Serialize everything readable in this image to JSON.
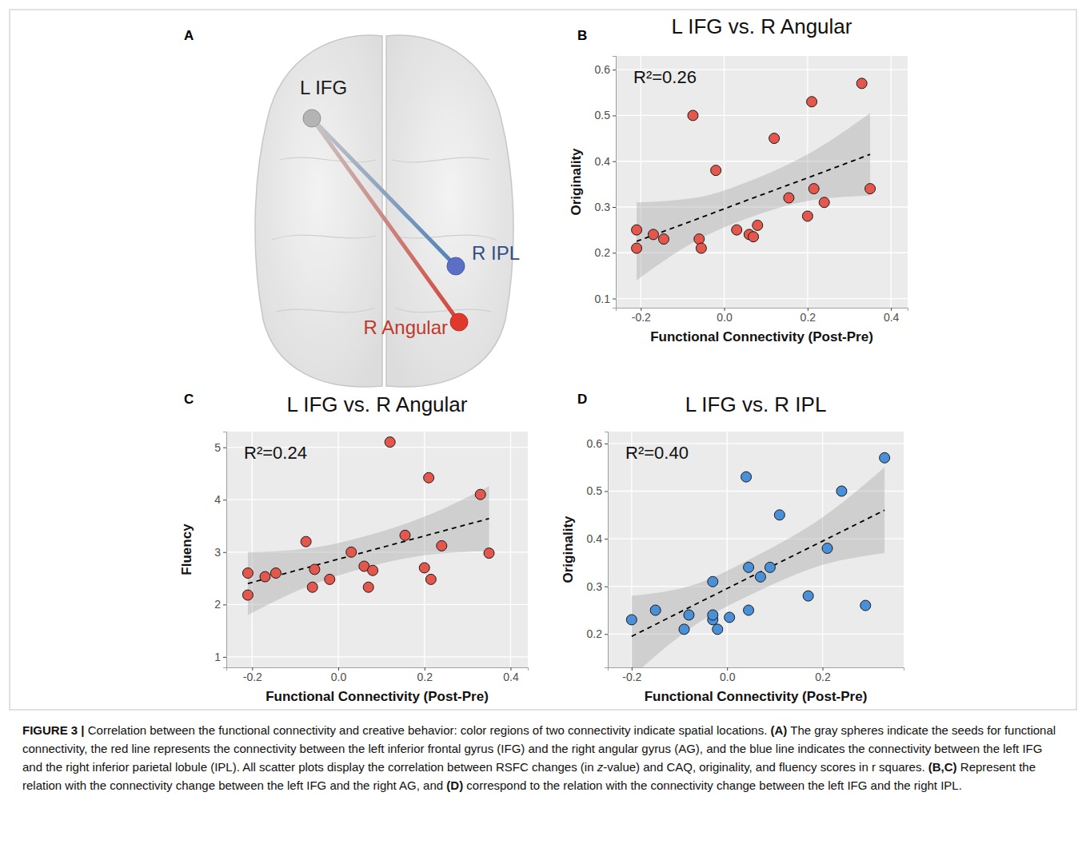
{
  "diagram": {
    "panel": "A",
    "nodes": [
      {
        "label": "L IFG",
        "color": "#b4b4b4"
      },
      {
        "label": "R IPL",
        "color": "#5b6fc7"
      },
      {
        "label": "R Angular",
        "color": "#e0392b"
      }
    ],
    "edges": [
      {
        "from": "L IFG",
        "to": "R IPL",
        "color": "#4f7fb8"
      },
      {
        "from": "L IFG",
        "to": "R Angular",
        "color": "#d2443a"
      }
    ]
  },
  "chart_data": [
    {
      "type": "scatter",
      "panel": "B",
      "title": "L IFG vs. R Angular",
      "annotation": "R²=0.26",
      "x_label": "Functional Connectivity (Post-Pre)",
      "y_label": "Originality",
      "xlim": [
        -0.26,
        0.44
      ],
      "ylim": [
        0.08,
        0.63
      ],
      "xticks": [
        -0.2,
        {
          "value": 0,
          "label": "0.0"
        },
        0.2,
        0.4
      ],
      "yticks": [
        0.1,
        0.2,
        0.3,
        0.4,
        0.5,
        0.6
      ],
      "grid": true,
      "series": [
        {
          "type": "scatter",
          "marker": "circle",
          "color": "#e4574c",
          "x": [
            -0.21,
            -0.21,
            -0.17,
            -0.145,
            -0.075,
            -0.06,
            -0.055,
            -0.02,
            0.03,
            0.06,
            0.07,
            0.08,
            0.12,
            0.155,
            0.2,
            0.21,
            0.215,
            0.24,
            0.33,
            0.35
          ],
          "values": [
            0.25,
            0.21,
            0.24,
            0.23,
            0.5,
            0.23,
            0.21,
            0.38,
            0.25,
            0.24,
            0.235,
            0.26,
            0.45,
            0.32,
            0.28,
            0.53,
            0.34,
            0.31,
            0.57,
            0.34
          ]
        },
        {
          "type": "line",
          "line_style": "dashed",
          "color": "#000000",
          "x": [
            -0.21,
            -0.07,
            0.07,
            0.21,
            0.35
          ],
          "values": [
            0.225,
            0.272,
            0.32,
            0.367,
            0.415
          ],
          "ci_low": [
            0.14,
            0.225,
            0.28,
            0.315,
            0.325
          ],
          "ci_high": [
            0.31,
            0.32,
            0.36,
            0.42,
            0.505
          ]
        }
      ]
    },
    {
      "type": "scatter",
      "panel": "C",
      "title": "L IFG vs. R Angular",
      "annotation": "R²=0.24",
      "x_label": "Functional Connectivity (Post-Pre)",
      "y_label": "Fluency",
      "xlim": [
        -0.26,
        0.44
      ],
      "ylim": [
        0.8,
        5.3
      ],
      "xticks": [
        -0.2,
        {
          "value": 0,
          "label": "0.0"
        },
        0.2,
        0.4
      ],
      "yticks": [
        1,
        2,
        3,
        4,
        5
      ],
      "grid": true,
      "series": [
        {
          "type": "scatter",
          "marker": "circle",
          "color": "#e4574c",
          "x": [
            -0.21,
            -0.21,
            -0.17,
            -0.145,
            -0.075,
            -0.06,
            -0.055,
            -0.02,
            0.03,
            0.06,
            0.07,
            0.08,
            0.12,
            0.155,
            0.2,
            0.21,
            0.215,
            0.24,
            0.33,
            0.35
          ],
          "values": [
            2.6,
            2.18,
            2.53,
            2.6,
            3.2,
            2.33,
            2.67,
            2.48,
            3.0,
            2.73,
            2.33,
            2.65,
            5.1,
            3.32,
            2.7,
            4.42,
            2.48,
            3.12,
            4.1,
            2.98
          ]
        },
        {
          "type": "line",
          "line_style": "dashed",
          "color": "#000000",
          "x": [
            -0.21,
            -0.07,
            0.07,
            0.21,
            0.35
          ],
          "values": [
            2.4,
            2.71,
            3.02,
            3.33,
            3.64
          ],
          "ci_low": [
            1.8,
            2.35,
            2.72,
            2.95,
            3.02
          ],
          "ci_high": [
            3.0,
            3.07,
            3.32,
            3.71,
            4.26
          ]
        }
      ]
    },
    {
      "type": "scatter",
      "panel": "D",
      "title": "L IFG vs. R IPL",
      "annotation": "R²=0.40",
      "x_label": "Functional Connectivity (Post-Pre)",
      "y_label": "Originality",
      "xlim": [
        -0.25,
        0.37
      ],
      "ylim": [
        0.13,
        0.625
      ],
      "xticks": [
        -0.2,
        {
          "value": 0,
          "label": "0.0"
        },
        0.2
      ],
      "yticks": [
        0.2,
        0.3,
        0.4,
        0.5,
        0.6
      ],
      "grid": true,
      "series": [
        {
          "type": "scatter",
          "marker": "circle",
          "color": "#4a90d9",
          "x": [
            -0.2,
            -0.15,
            -0.09,
            -0.08,
            -0.03,
            -0.03,
            -0.03,
            -0.02,
            0.005,
            0.04,
            0.045,
            0.045,
            0.07,
            0.09,
            0.11,
            0.17,
            0.21,
            0.24,
            0.29,
            0.33
          ],
          "values": [
            0.23,
            0.25,
            0.21,
            0.24,
            0.31,
            0.23,
            0.24,
            0.21,
            0.235,
            0.53,
            0.25,
            0.34,
            0.32,
            0.34,
            0.45,
            0.28,
            0.38,
            0.5,
            0.26,
            0.57
          ]
        },
        {
          "type": "line",
          "line_style": "dashed",
          "color": "#000000",
          "x": [
            -0.2,
            -0.065,
            0.065,
            0.2,
            0.33
          ],
          "values": [
            0.195,
            0.263,
            0.328,
            0.395,
            0.46
          ],
          "ci_low": [
            0.11,
            0.22,
            0.29,
            0.345,
            0.37
          ],
          "ci_high": [
            0.28,
            0.305,
            0.366,
            0.445,
            0.55
          ]
        }
      ]
    }
  ],
  "caption": {
    "runs": [
      {
        "text": "FIGURE 3 |",
        "style": "bold"
      },
      {
        "text": " Correlation between the functional connectivity and creative behavior: color regions of two connectivity indicate spatial locations. "
      },
      {
        "text": "(A)",
        "style": "bold"
      },
      {
        "text": " The gray spheres indicate the seeds for functional connectivity, the red line represents the connectivity between the left inferior frontal gyrus (IFG) and the right angular gyrus (AG), and the blue line indicates the connectivity between the left IFG and the right inferior parietal lobule (IPL). All scatter plots display the correlation between RSFC changes (in "
      },
      {
        "text": "z",
        "style": "italic"
      },
      {
        "text": "-value) and CAQ, originality, and fluency scores in r squares. "
      },
      {
        "text": "(B,C)",
        "style": "bold"
      },
      {
        "text": " Represent the relation with the connectivity change between the left IFG and the right AG, and "
      },
      {
        "text": "(D)",
        "style": "bold"
      },
      {
        "text": " correspond to the relation with the connectivity change between the left IFG and the right IPL."
      }
    ]
  }
}
